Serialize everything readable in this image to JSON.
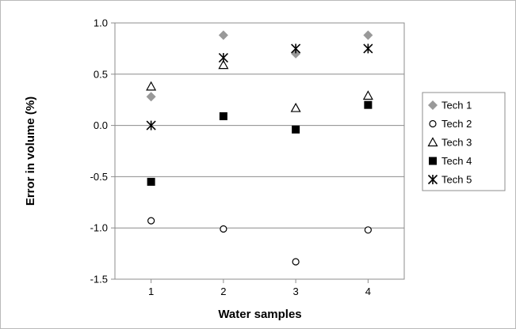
{
  "chart_data": {
    "type": "scatter",
    "xlabel": "Water samples",
    "ylabel": "Error in volume (%)",
    "x": [
      1,
      2,
      3,
      4
    ],
    "x_ticks": [
      "1",
      "2",
      "3",
      "4"
    ],
    "y_ticks": [
      "1.0",
      "0.5",
      "0.0",
      "-0.5",
      "-1.0",
      "-1.5"
    ],
    "xlim": [
      0.5,
      4.5
    ],
    "ylim": [
      -1.5,
      1.0
    ],
    "grid": "horizontal",
    "legend_position": "right",
    "series": [
      {
        "name": "Tech 1",
        "marker": "diamond",
        "color": "#999999",
        "values": [
          0.28,
          0.88,
          0.7,
          0.88
        ]
      },
      {
        "name": "Tech 2",
        "marker": "circle-open",
        "color": "#000000",
        "values": [
          -0.93,
          -1.01,
          -1.33,
          -1.02
        ]
      },
      {
        "name": "Tech 3",
        "marker": "triangle-open",
        "color": "#000000",
        "values": [
          0.38,
          0.59,
          0.17,
          0.29
        ]
      },
      {
        "name": "Tech 4",
        "marker": "square",
        "color": "#000000",
        "values": [
          -0.55,
          0.09,
          -0.04,
          0.2
        ]
      },
      {
        "name": "Tech 5",
        "marker": "star",
        "color": "#000000",
        "values": [
          0.0,
          0.66,
          0.75,
          0.75
        ]
      }
    ]
  }
}
